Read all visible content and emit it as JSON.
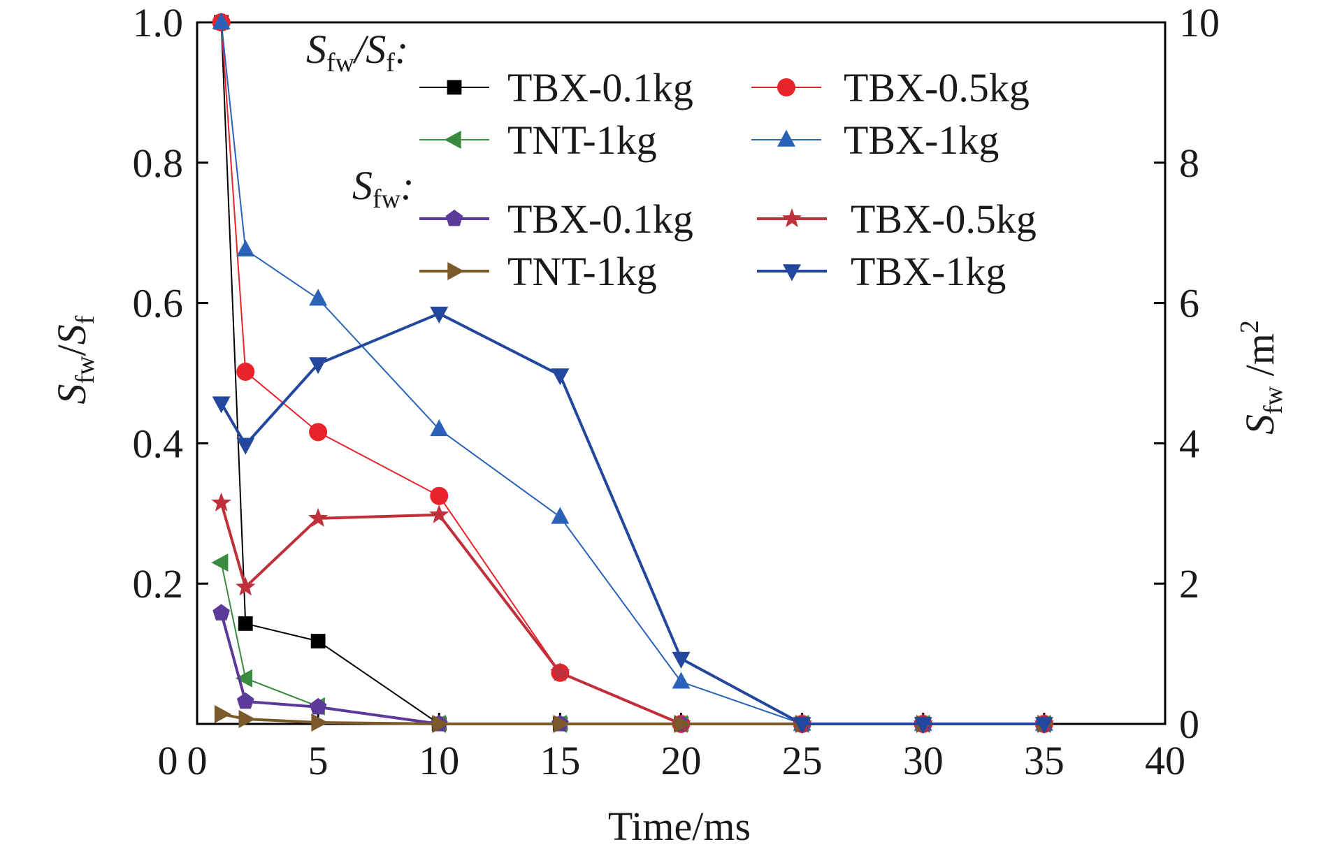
{
  "chart_data": {
    "type": "line",
    "x_axis": {
      "label": "Time/ms",
      "range": [
        0,
        40
      ],
      "ticks": [
        0,
        5,
        10,
        15,
        20,
        25,
        30,
        35,
        40
      ],
      "tick_labels": [
        "0",
        "5",
        "10",
        "15",
        "20",
        "25",
        "30",
        "35",
        "40"
      ]
    },
    "y_axis_left": {
      "label_main": "S",
      "label_sub": "fw",
      "label_slash": "/",
      "label_main2": "S",
      "label_sub2": "f",
      "range": [
        0,
        1.0
      ],
      "ticks": [
        0.2,
        0.4,
        0.6,
        0.8,
        1.0
      ],
      "tick_labels": [
        "0.2",
        "0.4",
        "0.6",
        "0.8",
        "1.0"
      ]
    },
    "y_axis_right": {
      "label_main": "S",
      "label_sub": "fw",
      "label_unit": " /m",
      "label_sup": "2",
      "range": [
        0,
        10
      ],
      "ticks": [
        0,
        2,
        4,
        6,
        8,
        10
      ],
      "tick_labels": [
        "0",
        "2",
        "4",
        "6",
        "8",
        "10"
      ]
    },
    "grid": false,
    "legend_groups": [
      {
        "heading_main": "S",
        "heading_sub": "fw",
        "heading_slash": "/",
        "heading_main2": "S",
        "heading_sub2": "f",
        "heading_colon": ":"
      },
      {
        "heading_main": "S",
        "heading_sub": "fw",
        "heading_colon": ":"
      }
    ],
    "series": [
      {
        "name": "TBX-0.1kg",
        "group": 0,
        "axis": "left",
        "color": "#000000",
        "marker": "square",
        "width": 2,
        "x": [
          1,
          2,
          5,
          10,
          15,
          20,
          25,
          30,
          35
        ],
        "y": [
          1.0,
          0.143,
          0.118,
          0,
          0,
          0,
          0,
          0,
          0
        ]
      },
      {
        "name": "TBX-0.5kg",
        "group": 0,
        "axis": "left",
        "color": "#e8232a",
        "marker": "circle",
        "width": 2,
        "x": [
          1,
          2,
          5,
          10,
          15,
          20,
          25,
          30,
          35
        ],
        "y": [
          1.0,
          0.502,
          0.416,
          0.325,
          0.073,
          0,
          0,
          0,
          0
        ]
      },
      {
        "name": "TNT-1kg",
        "group": 0,
        "axis": "left",
        "color": "#3a8a3f",
        "marker": "triangle-left",
        "width": 2,
        "x": [
          1,
          2,
          5,
          10,
          15,
          20,
          25,
          30,
          35
        ],
        "y": [
          0.23,
          0.065,
          0.025,
          0,
          0,
          0,
          0,
          0,
          0
        ]
      },
      {
        "name": "TBX-1kg",
        "group": 0,
        "axis": "left",
        "color": "#2a62b8",
        "marker": "triangle-up",
        "width": 2,
        "x": [
          1,
          2,
          5,
          10,
          15,
          20,
          25,
          30,
          35
        ],
        "y": [
          1.0,
          0.676,
          0.606,
          0.42,
          0.295,
          0.06,
          0,
          0,
          0
        ]
      },
      {
        "name": "TBX-0.1kg",
        "group": 1,
        "axis": "right",
        "color": "#5b3a9a",
        "marker": "pentagon",
        "width": 4,
        "x": [
          1,
          2,
          5,
          10,
          15,
          20,
          25,
          30,
          35
        ],
        "y": [
          1.58,
          0.32,
          0.24,
          0,
          0,
          0,
          0,
          0,
          0
        ]
      },
      {
        "name": "TBX-0.5kg",
        "group": 1,
        "axis": "right",
        "color": "#c0303a",
        "marker": "star",
        "width": 4,
        "x": [
          1,
          2,
          5,
          10,
          15,
          20,
          25,
          30,
          35
        ],
        "y": [
          3.15,
          1.95,
          2.93,
          2.98,
          0.73,
          0,
          0,
          0,
          0
        ]
      },
      {
        "name": "TNT-1kg",
        "group": 1,
        "axis": "right",
        "color": "#7a5a2a",
        "marker": "triangle-right",
        "width": 4,
        "x": [
          1,
          2,
          5,
          10,
          15,
          20,
          25,
          30,
          35
        ],
        "y": [
          0.14,
          0.07,
          0.02,
          0,
          0,
          0,
          0,
          0,
          0
        ]
      },
      {
        "name": "TBX-1kg",
        "group": 1,
        "axis": "right",
        "color": "#22479c",
        "marker": "triangle-down",
        "width": 4,
        "x": [
          1,
          2,
          5,
          10,
          15,
          20,
          25,
          30,
          35
        ],
        "y": [
          4.57,
          3.98,
          5.13,
          5.85,
          4.97,
          0.93,
          0,
          0,
          0
        ]
      }
    ]
  }
}
